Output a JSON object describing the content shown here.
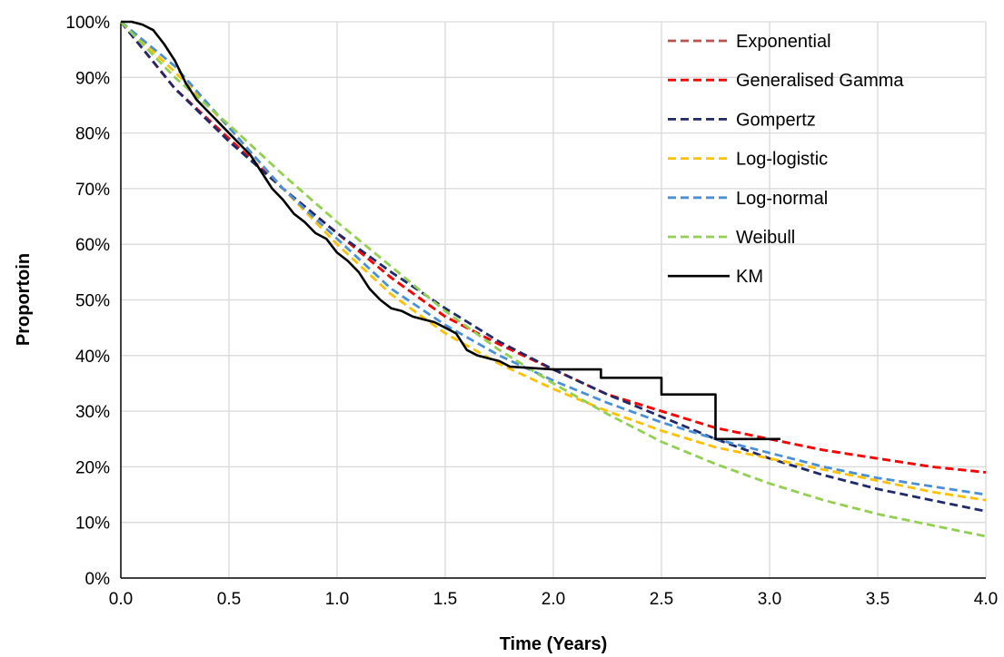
{
  "chart_data": {
    "type": "line",
    "xlabel": "Time (Years)",
    "ylabel": "Proportoin",
    "xlim": [
      0,
      4
    ],
    "ylim": [
      0,
      100
    ],
    "x_ticks": [
      "0.0",
      "0.5",
      "1.0",
      "1.5",
      "2.0",
      "2.5",
      "3.0",
      "3.5",
      "4.0"
    ],
    "y_ticks": [
      "0%",
      "10%",
      "20%",
      "30%",
      "40%",
      "50%",
      "60%",
      "70%",
      "80%",
      "90%",
      "100%"
    ],
    "grid": "both",
    "legend_position": "top-right",
    "series": [
      {
        "name": "Exponential",
        "color": "#c0504d",
        "style": "dashed",
        "x": [
          0,
          0.25,
          0.5,
          0.75,
          1.0,
          1.25,
          1.5,
          1.75,
          2.0,
          2.25,
          2.5,
          2.75,
          3.0,
          3.25,
          3.5,
          3.75,
          4.0
        ],
        "y": [
          100,
          88,
          79,
          70,
          62,
          54,
          47,
          42,
          37.5,
          33,
          30,
          27,
          25,
          23,
          21.5,
          20,
          19
        ]
      },
      {
        "name": "Generalised Gamma",
        "color": "#ff0000",
        "style": "dashed",
        "x": [
          0,
          0.25,
          0.5,
          0.75,
          1.0,
          1.25,
          1.5,
          1.75,
          2.0,
          2.25,
          2.5,
          2.75,
          3.0,
          3.25,
          3.5,
          3.75,
          4.0
        ],
        "y": [
          100,
          88,
          79,
          70,
          62,
          54,
          47,
          42,
          37.5,
          33,
          30,
          27,
          25,
          23,
          21.5,
          20,
          19
        ]
      },
      {
        "name": "Gompertz",
        "color": "#1f2a6b",
        "style": "dashed",
        "x": [
          0,
          0.25,
          0.5,
          0.75,
          1.0,
          1.25,
          1.5,
          1.75,
          2.0,
          2.25,
          2.5,
          2.75,
          3.0,
          3.25,
          3.5,
          3.75,
          4.0
        ],
        "y": [
          100,
          88,
          78.5,
          70,
          62,
          55,
          48.5,
          42.5,
          37.5,
          33,
          29,
          25,
          21.5,
          18.5,
          16,
          14,
          12
        ]
      },
      {
        "name": "Log-logistic",
        "color": "#ffc000",
        "style": "dashed",
        "x": [
          0,
          0.25,
          0.5,
          0.75,
          1.0,
          1.25,
          1.5,
          1.75,
          2.0,
          2.25,
          2.5,
          2.75,
          3.0,
          3.25,
          3.5,
          3.75,
          4.0
        ],
        "y": [
          100,
          91,
          81,
          70,
          60,
          51,
          44,
          38.5,
          34,
          30,
          26.5,
          23.5,
          21.5,
          19.5,
          17.5,
          15.5,
          14
        ]
      },
      {
        "name": "Log-normal",
        "color": "#4a90d9",
        "style": "dashed",
        "x": [
          0,
          0.25,
          0.5,
          0.75,
          1.0,
          1.25,
          1.5,
          1.75,
          2.0,
          2.25,
          2.5,
          2.75,
          3.0,
          3.25,
          3.5,
          3.75,
          4.0
        ],
        "y": [
          100,
          92,
          81,
          70,
          61,
          52,
          45.5,
          40,
          35.5,
          31.5,
          28,
          25,
          22.5,
          20,
          18,
          16.5,
          15
        ]
      },
      {
        "name": "Weibull",
        "color": "#92d050",
        "style": "dashed",
        "x": [
          0,
          0.25,
          0.5,
          0.75,
          1.0,
          1.25,
          1.5,
          1.75,
          2.0,
          2.25,
          2.5,
          2.75,
          3.0,
          3.25,
          3.5,
          3.75,
          4.0
        ],
        "y": [
          100,
          90,
          81.5,
          72.5,
          64,
          56,
          48,
          41,
          35,
          29.5,
          24.5,
          20.5,
          17,
          14,
          11.5,
          9.5,
          7.5
        ]
      },
      {
        "name": "KM",
        "color": "#000000",
        "style": "solid",
        "x": [
          0,
          0.05,
          0.1,
          0.15,
          0.2,
          0.25,
          0.3,
          0.35,
          0.4,
          0.45,
          0.5,
          0.55,
          0.6,
          0.65,
          0.7,
          0.75,
          0.8,
          0.85,
          0.9,
          0.95,
          1.0,
          1.05,
          1.1,
          1.15,
          1.2,
          1.25,
          1.3,
          1.35,
          1.4,
          1.45,
          1.5,
          1.55,
          1.6,
          1.65,
          1.7,
          1.75,
          1.8,
          2.0,
          2.0,
          2.22,
          2.22,
          2.5,
          2.5,
          2.75,
          2.75,
          3.05
        ],
        "y": [
          100,
          100,
          99.5,
          98.5,
          96,
          93,
          89,
          86,
          84,
          82,
          80,
          78,
          76,
          73,
          70,
          68,
          65.5,
          64,
          62,
          61,
          58.5,
          57,
          55,
          52,
          50,
          48.5,
          48,
          47,
          46.5,
          46,
          45,
          44,
          41,
          40,
          39.5,
          39,
          38,
          37.5,
          37.5,
          37.5,
          36,
          36,
          33,
          33,
          25,
          25
        ]
      }
    ]
  }
}
